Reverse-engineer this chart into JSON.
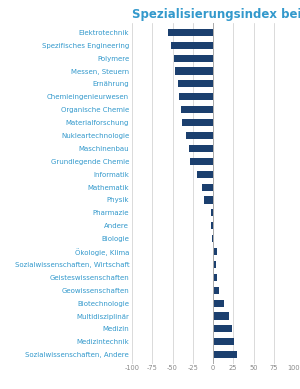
{
  "title": "Spezialisierungsindex bei Publikationen",
  "categories": [
    "Elektrotechnik",
    "Spezifisches Engineering",
    "Polymere",
    "Messen, Steuern",
    "Ernährung",
    "Chemieingenieurwesen",
    "Organische Chemie",
    "Materialforschung",
    "Nukleartechnologie",
    "Maschinenbau",
    "Grundlegende Chemie",
    "Informatik",
    "Mathematik",
    "Physik",
    "Pharmazie",
    "Andere",
    "Biologie",
    "Ökologie, Klima",
    "Sozialwissenschaften, Wirtschaft",
    "Geisteswissenschaften",
    "Geowissenschaften",
    "Biotechnologie",
    "Multidisziplinär",
    "Medizin",
    "Medizintechnik",
    "Sozialwissenschaften, Andere"
  ],
  "values": [
    -55,
    -52,
    -48,
    -47,
    -43,
    -42,
    -40,
    -38,
    -33,
    -30,
    -29,
    -20,
    -13,
    -11,
    -3,
    -2,
    -1,
    5,
    4,
    5,
    7,
    13,
    20,
    24,
    26,
    30
  ],
  "bar_color": "#1b3f6e",
  "title_color": "#3399cc",
  "label_color": "#3399cc",
  "tick_color": "#888888",
  "grid_color": "#cccccc",
  "bg_color": "#ffffff",
  "xlim": [
    -100,
    100
  ],
  "xticks": [
    -100,
    -75,
    -50,
    -25,
    0,
    25,
    50,
    75,
    100
  ],
  "title_fontsize": 8.5,
  "label_fontsize": 5.0,
  "tick_fontsize": 4.8,
  "bar_height": 0.55
}
